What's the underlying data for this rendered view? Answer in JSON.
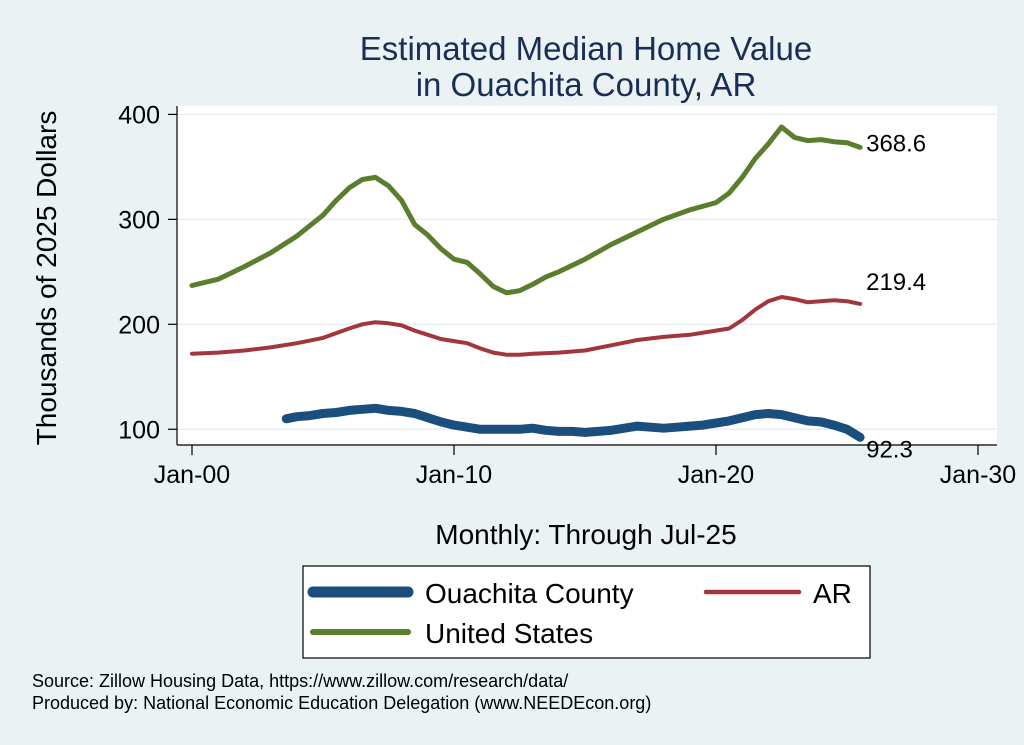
{
  "chart_data": {
    "type": "line",
    "title": [
      "Estimated Median Home Value",
      "in Ouachita County, AR"
    ],
    "xlabel": "Monthly: Through Jul-25",
    "ylabel": "Thousands of 2025 Dollars",
    "x_ticks": [
      {
        "label": "Jan-00",
        "value": 2000.0
      },
      {
        "label": "Jan-10",
        "value": 2010.0
      },
      {
        "label": "Jan-20",
        "value": 2020.0
      },
      {
        "label": "Jan-30",
        "value": 2030.0
      }
    ],
    "y_ticks": [
      100,
      200,
      300,
      400
    ],
    "xlim": [
      2000.0,
      2030.0
    ],
    "ylim": [
      85,
      408
    ],
    "grid": true,
    "legend_position": "bottom",
    "series": [
      {
        "name": "Ouachita County",
        "color": "#1a4e7c",
        "end_label": "92.3",
        "x": [
          2003.6,
          2004.0,
          2004.5,
          2005.0,
          2005.5,
          2006.0,
          2006.5,
          2007.0,
          2007.5,
          2008.0,
          2008.5,
          2009.0,
          2009.5,
          2010.0,
          2010.5,
          2011.0,
          2011.5,
          2012.0,
          2012.5,
          2013.0,
          2013.5,
          2014.0,
          2014.5,
          2015.0,
          2015.5,
          2016.0,
          2016.5,
          2017.0,
          2017.5,
          2018.0,
          2018.5,
          2019.0,
          2019.5,
          2020.0,
          2020.5,
          2021.0,
          2021.5,
          2022.0,
          2022.5,
          2023.0,
          2023.5,
          2024.0,
          2024.5,
          2025.0,
          2025.5
        ],
        "values": [
          110,
          112,
          113,
          115,
          116,
          118,
          119,
          120,
          118,
          117,
          115,
          111,
          107,
          104,
          102,
          100,
          100,
          100,
          100,
          101,
          99,
          98,
          98,
          97,
          98,
          99,
          101,
          103,
          102,
          101,
          102,
          103,
          104,
          106,
          108,
          111,
          114,
          115,
          114,
          111,
          108,
          107,
          104,
          100,
          92.3
        ]
      },
      {
        "name": "AR",
        "color": "#a3353c",
        "end_label": "219.4",
        "x": [
          2000.0,
          2001.0,
          2002.0,
          2003.0,
          2004.0,
          2005.0,
          2006.0,
          2006.5,
          2007.0,
          2007.5,
          2008.0,
          2008.5,
          2009.0,
          2009.5,
          2010.0,
          2010.5,
          2011.0,
          2011.5,
          2012.0,
          2012.5,
          2013.0,
          2014.0,
          2015.0,
          2016.0,
          2017.0,
          2018.0,
          2019.0,
          2020.0,
          2020.5,
          2021.0,
          2021.5,
          2022.0,
          2022.5,
          2023.0,
          2023.5,
          2024.0,
          2024.5,
          2025.0,
          2025.5
        ],
        "values": [
          172,
          173,
          175,
          178,
          182,
          187,
          196,
          200,
          202,
          201,
          199,
          194,
          190,
          186,
          184,
          182,
          177,
          173,
          171,
          171,
          172,
          173,
          175,
          180,
          185,
          188,
          190,
          194,
          196,
          204,
          214,
          222,
          226,
          224,
          221,
          222,
          223,
          222,
          219.4
        ]
      },
      {
        "name": "United States",
        "color": "#5a7d2e",
        "end_label": "368.6",
        "x": [
          2000.0,
          2001.0,
          2002.0,
          2003.0,
          2004.0,
          2005.0,
          2005.5,
          2006.0,
          2006.5,
          2007.0,
          2007.5,
          2008.0,
          2008.5,
          2009.0,
          2009.5,
          2010.0,
          2010.5,
          2011.0,
          2011.5,
          2012.0,
          2012.5,
          2013.0,
          2013.5,
          2014.0,
          2015.0,
          2016.0,
          2017.0,
          2018.0,
          2019.0,
          2020.0,
          2020.5,
          2021.0,
          2021.5,
          2022.0,
          2022.5,
          2023.0,
          2023.5,
          2024.0,
          2024.5,
          2025.0,
          2025.5
        ],
        "values": [
          237,
          243,
          255,
          268,
          284,
          304,
          318,
          330,
          338,
          340,
          332,
          318,
          295,
          285,
          272,
          262,
          259,
          248,
          236,
          230,
          232,
          238,
          245,
          250,
          262,
          276,
          288,
          300,
          309,
          316,
          325,
          340,
          358,
          372,
          388,
          378,
          375,
          376,
          374,
          373,
          368.6
        ]
      }
    ]
  },
  "legend": {
    "items": [
      {
        "label": "Ouachita County",
        "color": "#1a4e7c"
      },
      {
        "label": "AR",
        "color": "#a3353c"
      },
      {
        "label": "United States",
        "color": "#5a7d2e"
      }
    ]
  },
  "footer": {
    "source": "Source: Zillow Housing Data, https://www.zillow.com/research/data/",
    "produced": "Produced by: National Economic Education Delegation (www.NEEDEcon.org)"
  }
}
